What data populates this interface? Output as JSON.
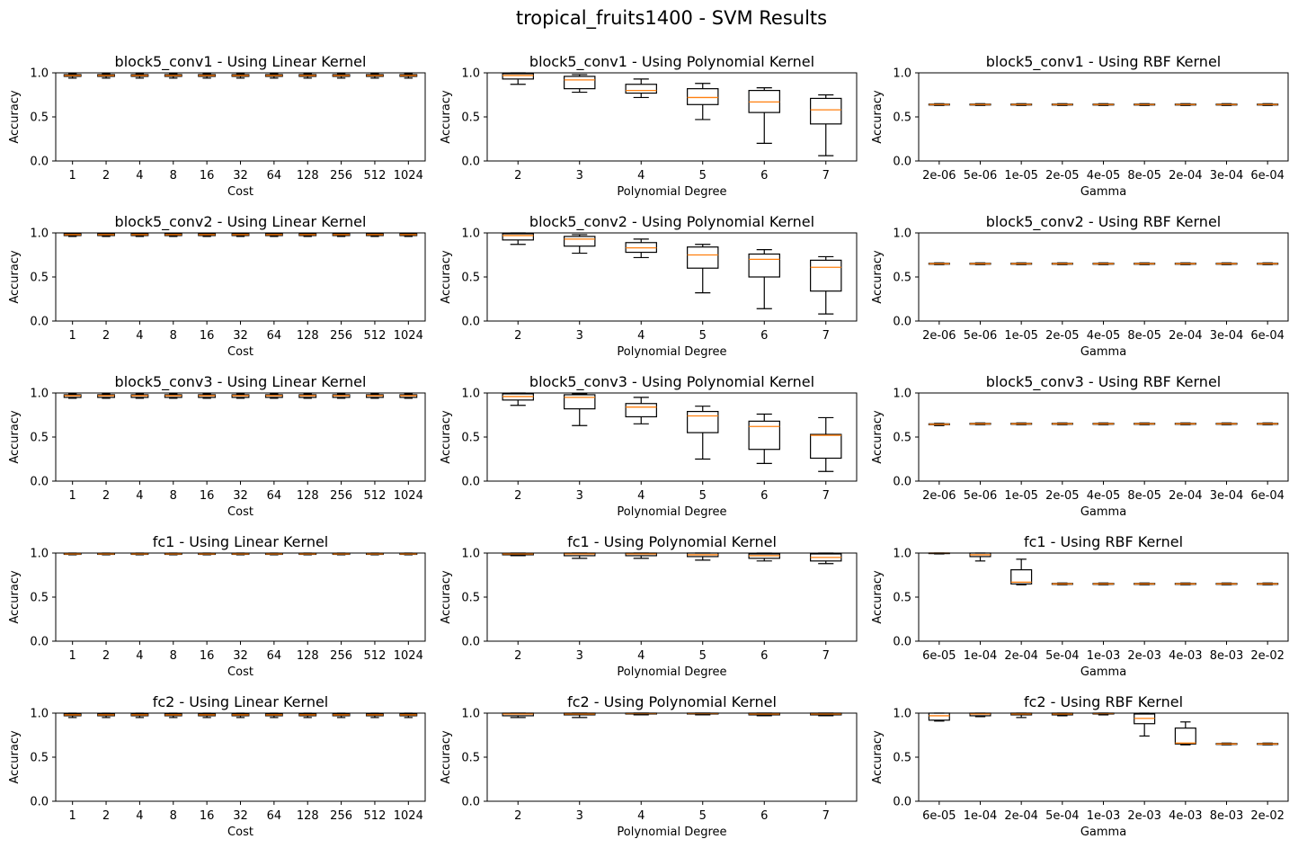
{
  "suptitle": "tropical_fruits1400 - SVM Results",
  "colors": {
    "box": "#000000",
    "median": "#ff7f0e",
    "background": "#ffffff"
  },
  "chart_data": [
    {
      "type": "box",
      "title": "block5_conv1 - Using Linear Kernel",
      "xlabel": "Cost",
      "ylabel": "Accuracy",
      "ylim": [
        0,
        1
      ],
      "yticks": [
        "0.0",
        "0.5",
        "1.0"
      ],
      "categories": [
        "1",
        "2",
        "4",
        "8",
        "16",
        "32",
        "64",
        "128",
        "256",
        "512",
        "1024"
      ],
      "boxes": [
        [
          0.94,
          0.96,
          0.97,
          0.98,
          0.99
        ],
        [
          0.94,
          0.96,
          0.97,
          0.98,
          0.99
        ],
        [
          0.94,
          0.96,
          0.97,
          0.98,
          0.99
        ],
        [
          0.94,
          0.96,
          0.97,
          0.98,
          0.99
        ],
        [
          0.94,
          0.96,
          0.97,
          0.98,
          0.99
        ],
        [
          0.94,
          0.96,
          0.97,
          0.98,
          0.99
        ],
        [
          0.94,
          0.96,
          0.97,
          0.98,
          0.99
        ],
        [
          0.94,
          0.96,
          0.97,
          0.98,
          0.99
        ],
        [
          0.94,
          0.96,
          0.97,
          0.98,
          0.99
        ],
        [
          0.94,
          0.96,
          0.97,
          0.98,
          0.99
        ],
        [
          0.94,
          0.96,
          0.97,
          0.98,
          0.99
        ]
      ]
    },
    {
      "type": "box",
      "title": "block5_conv1 - Using Polynomial Kernel",
      "xlabel": "Polynomial Degree",
      "ylabel": "Accuracy",
      "ylim": [
        0,
        1
      ],
      "yticks": [
        "0.0",
        "0.5",
        "1.0"
      ],
      "categories": [
        "2",
        "3",
        "4",
        "5",
        "6",
        "7"
      ],
      "boxes": [
        [
          0.87,
          0.93,
          0.97,
          0.99,
          1.0
        ],
        [
          0.78,
          0.82,
          0.92,
          0.96,
          0.98
        ],
        [
          0.72,
          0.77,
          0.8,
          0.87,
          0.93
        ],
        [
          0.47,
          0.64,
          0.72,
          0.82,
          0.88
        ],
        [
          0.2,
          0.55,
          0.67,
          0.8,
          0.83
        ],
        [
          0.06,
          0.42,
          0.58,
          0.71,
          0.75
        ]
      ]
    },
    {
      "type": "box",
      "title": "block5_conv1 - Using RBF Kernel",
      "xlabel": "Gamma",
      "ylabel": "Accuracy",
      "ylim": [
        0,
        1
      ],
      "yticks": [
        "0.0",
        "0.5",
        "1.0"
      ],
      "categories": [
        "2e-06",
        "5e-06",
        "1e-05",
        "2e-05",
        "4e-05",
        "8e-05",
        "2e-04",
        "3e-04",
        "6e-04"
      ],
      "boxes": [
        [
          0.63,
          0.635,
          0.64,
          0.645,
          0.65
        ],
        [
          0.63,
          0.635,
          0.64,
          0.645,
          0.65
        ],
        [
          0.63,
          0.635,
          0.64,
          0.645,
          0.65
        ],
        [
          0.63,
          0.635,
          0.64,
          0.645,
          0.65
        ],
        [
          0.63,
          0.635,
          0.64,
          0.645,
          0.65
        ],
        [
          0.63,
          0.635,
          0.64,
          0.645,
          0.65
        ],
        [
          0.63,
          0.635,
          0.64,
          0.645,
          0.65
        ],
        [
          0.63,
          0.635,
          0.64,
          0.645,
          0.65
        ],
        [
          0.63,
          0.635,
          0.64,
          0.645,
          0.65
        ]
      ]
    },
    {
      "type": "box",
      "title": "block5_conv2 - Using Linear Kernel",
      "xlabel": "Cost",
      "ylabel": "Accuracy",
      "ylim": [
        0,
        1
      ],
      "yticks": [
        "0.0",
        "0.5",
        "1.0"
      ],
      "categories": [
        "1",
        "2",
        "4",
        "8",
        "16",
        "32",
        "64",
        "128",
        "256",
        "512",
        "1024"
      ],
      "boxes": [
        [
          0.96,
          0.97,
          0.98,
          0.99,
          0.995
        ],
        [
          0.96,
          0.97,
          0.98,
          0.99,
          0.995
        ],
        [
          0.96,
          0.97,
          0.98,
          0.99,
          0.995
        ],
        [
          0.96,
          0.97,
          0.98,
          0.99,
          0.995
        ],
        [
          0.96,
          0.97,
          0.98,
          0.99,
          0.995
        ],
        [
          0.96,
          0.97,
          0.98,
          0.99,
          0.995
        ],
        [
          0.96,
          0.97,
          0.98,
          0.99,
          0.995
        ],
        [
          0.96,
          0.97,
          0.98,
          0.99,
          0.995
        ],
        [
          0.96,
          0.97,
          0.98,
          0.99,
          0.995
        ],
        [
          0.96,
          0.97,
          0.98,
          0.99,
          0.995
        ],
        [
          0.96,
          0.97,
          0.98,
          0.99,
          0.995
        ]
      ]
    },
    {
      "type": "box",
      "title": "block5_conv2 - Using Polynomial Kernel",
      "xlabel": "Polynomial Degree",
      "ylabel": "Accuracy",
      "ylim": [
        0,
        1
      ],
      "yticks": [
        "0.0",
        "0.5",
        "1.0"
      ],
      "categories": [
        "2",
        "3",
        "4",
        "5",
        "6",
        "7"
      ],
      "boxes": [
        [
          0.87,
          0.92,
          0.97,
          0.99,
          1.0
        ],
        [
          0.77,
          0.85,
          0.93,
          0.96,
          0.98
        ],
        [
          0.72,
          0.78,
          0.83,
          0.89,
          0.93
        ],
        [
          0.32,
          0.6,
          0.75,
          0.84,
          0.87
        ],
        [
          0.14,
          0.5,
          0.7,
          0.76,
          0.81
        ],
        [
          0.08,
          0.34,
          0.61,
          0.69,
          0.73
        ]
      ]
    },
    {
      "type": "box",
      "title": "block5_conv2 - Using RBF Kernel",
      "xlabel": "Gamma",
      "ylabel": "Accuracy",
      "ylim": [
        0,
        1
      ],
      "yticks": [
        "0.0",
        "0.5",
        "1.0"
      ],
      "categories": [
        "2e-06",
        "5e-06",
        "1e-05",
        "2e-05",
        "4e-05",
        "8e-05",
        "2e-04",
        "3e-04",
        "6e-04"
      ],
      "boxes": [
        [
          0.64,
          0.645,
          0.65,
          0.655,
          0.66
        ],
        [
          0.64,
          0.645,
          0.65,
          0.655,
          0.66
        ],
        [
          0.64,
          0.645,
          0.65,
          0.655,
          0.66
        ],
        [
          0.64,
          0.645,
          0.65,
          0.655,
          0.66
        ],
        [
          0.64,
          0.645,
          0.65,
          0.655,
          0.66
        ],
        [
          0.64,
          0.645,
          0.65,
          0.655,
          0.66
        ],
        [
          0.64,
          0.645,
          0.65,
          0.655,
          0.66
        ],
        [
          0.64,
          0.645,
          0.65,
          0.655,
          0.66
        ],
        [
          0.64,
          0.645,
          0.65,
          0.655,
          0.66
        ]
      ]
    },
    {
      "type": "box",
      "title": "block5_conv3 - Using Linear Kernel",
      "xlabel": "Cost",
      "ylabel": "Accuracy",
      "ylim": [
        0,
        1
      ],
      "yticks": [
        "0.0",
        "0.5",
        "1.0"
      ],
      "categories": [
        "1",
        "2",
        "4",
        "8",
        "16",
        "32",
        "64",
        "128",
        "256",
        "512",
        "1024"
      ],
      "boxes": [
        [
          0.94,
          0.95,
          0.97,
          0.98,
          0.99
        ],
        [
          0.94,
          0.95,
          0.97,
          0.98,
          0.99
        ],
        [
          0.94,
          0.95,
          0.97,
          0.98,
          0.99
        ],
        [
          0.94,
          0.95,
          0.97,
          0.98,
          0.99
        ],
        [
          0.94,
          0.95,
          0.97,
          0.98,
          0.99
        ],
        [
          0.94,
          0.95,
          0.97,
          0.98,
          0.99
        ],
        [
          0.94,
          0.95,
          0.97,
          0.98,
          0.99
        ],
        [
          0.94,
          0.95,
          0.97,
          0.98,
          0.99
        ],
        [
          0.94,
          0.95,
          0.97,
          0.98,
          0.99
        ],
        [
          0.94,
          0.95,
          0.97,
          0.98,
          0.99
        ],
        [
          0.94,
          0.95,
          0.97,
          0.98,
          0.99
        ]
      ]
    },
    {
      "type": "box",
      "title": "block5_conv3 - Using Polynomial Kernel",
      "xlabel": "Polynomial Degree",
      "ylabel": "Accuracy",
      "ylim": [
        0,
        1
      ],
      "yticks": [
        "0.0",
        "0.5",
        "1.0"
      ],
      "categories": [
        "2",
        "3",
        "4",
        "5",
        "6",
        "7"
      ],
      "boxes": [
        [
          0.86,
          0.92,
          0.96,
          0.99,
          1.0
        ],
        [
          0.63,
          0.82,
          0.95,
          0.98,
          0.99
        ],
        [
          0.65,
          0.73,
          0.84,
          0.88,
          0.95
        ],
        [
          0.25,
          0.55,
          0.74,
          0.79,
          0.85
        ],
        [
          0.2,
          0.36,
          0.62,
          0.68,
          0.76
        ],
        [
          0.11,
          0.26,
          0.52,
          0.53,
          0.72
        ]
      ]
    },
    {
      "type": "box",
      "title": "block5_conv3 - Using RBF Kernel",
      "xlabel": "Gamma",
      "ylabel": "Accuracy",
      "ylim": [
        0,
        1
      ],
      "yticks": [
        "0.0",
        "0.5",
        "1.0"
      ],
      "categories": [
        "2e-06",
        "5e-06",
        "1e-05",
        "2e-05",
        "4e-05",
        "8e-05",
        "2e-04",
        "3e-04",
        "6e-04"
      ],
      "boxes": [
        [
          0.63,
          0.64,
          0.645,
          0.65,
          0.655
        ],
        [
          0.64,
          0.645,
          0.65,
          0.655,
          0.66
        ],
        [
          0.64,
          0.645,
          0.65,
          0.655,
          0.66
        ],
        [
          0.64,
          0.645,
          0.65,
          0.655,
          0.66
        ],
        [
          0.64,
          0.645,
          0.65,
          0.655,
          0.66
        ],
        [
          0.64,
          0.645,
          0.65,
          0.655,
          0.66
        ],
        [
          0.64,
          0.645,
          0.65,
          0.655,
          0.66
        ],
        [
          0.64,
          0.645,
          0.65,
          0.655,
          0.66
        ],
        [
          0.64,
          0.645,
          0.65,
          0.655,
          0.66
        ]
      ]
    },
    {
      "type": "box",
      "title": "fc1 - Using Linear Kernel",
      "xlabel": "Cost",
      "ylabel": "Accuracy",
      "ylim": [
        0,
        1
      ],
      "yticks": [
        "0.0",
        "0.5",
        "1.0"
      ],
      "categories": [
        "1",
        "2",
        "4",
        "8",
        "16",
        "32",
        "64",
        "128",
        "256",
        "512",
        "1024"
      ],
      "boxes": [
        [
          0.98,
          0.985,
          0.99,
          0.995,
          1.0
        ],
        [
          0.98,
          0.985,
          0.99,
          0.995,
          1.0
        ],
        [
          0.98,
          0.985,
          0.99,
          0.995,
          1.0
        ],
        [
          0.98,
          0.985,
          0.99,
          0.995,
          1.0
        ],
        [
          0.98,
          0.985,
          0.99,
          0.995,
          1.0
        ],
        [
          0.98,
          0.985,
          0.99,
          0.995,
          1.0
        ],
        [
          0.98,
          0.985,
          0.99,
          0.995,
          1.0
        ],
        [
          0.98,
          0.985,
          0.99,
          0.995,
          1.0
        ],
        [
          0.98,
          0.985,
          0.99,
          0.995,
          1.0
        ],
        [
          0.98,
          0.985,
          0.99,
          0.995,
          1.0
        ],
        [
          0.98,
          0.985,
          0.99,
          0.995,
          1.0
        ]
      ]
    },
    {
      "type": "box",
      "title": "fc1 - Using Polynomial Kernel",
      "xlabel": "Polynomial Degree",
      "ylabel": "Accuracy",
      "ylim": [
        0,
        1
      ],
      "yticks": [
        "0.0",
        "0.5",
        "1.0"
      ],
      "categories": [
        "2",
        "3",
        "4",
        "5",
        "6",
        "7"
      ],
      "boxes": [
        [
          0.97,
          0.98,
          0.99,
          0.995,
          1.0
        ],
        [
          0.94,
          0.97,
          0.99,
          1.0,
          1.0
        ],
        [
          0.94,
          0.97,
          0.99,
          1.0,
          1.0
        ],
        [
          0.92,
          0.96,
          0.98,
          1.0,
          1.0
        ],
        [
          0.91,
          0.94,
          0.97,
          0.99,
          1.0
        ],
        [
          0.88,
          0.91,
          0.95,
          0.99,
          1.0
        ]
      ]
    },
    {
      "type": "box",
      "title": "fc1 - Using RBF Kernel",
      "xlabel": "Gamma",
      "ylabel": "Accuracy",
      "ylim": [
        0,
        1
      ],
      "yticks": [
        "0.0",
        "0.5",
        "1.0"
      ],
      "categories": [
        "6e-05",
        "1e-04",
        "2e-04",
        "5e-04",
        "1e-03",
        "2e-03",
        "4e-03",
        "8e-03",
        "2e-02"
      ],
      "boxes": [
        [
          0.99,
          0.995,
          1.0,
          1.0,
          1.0
        ],
        [
          0.91,
          0.96,
          0.98,
          1.0,
          1.0
        ],
        [
          0.64,
          0.65,
          0.67,
          0.81,
          0.93
        ],
        [
          0.64,
          0.645,
          0.65,
          0.655,
          0.66
        ],
        [
          0.64,
          0.645,
          0.65,
          0.655,
          0.66
        ],
        [
          0.64,
          0.645,
          0.65,
          0.655,
          0.66
        ],
        [
          0.64,
          0.645,
          0.65,
          0.655,
          0.66
        ],
        [
          0.64,
          0.645,
          0.65,
          0.655,
          0.66
        ],
        [
          0.64,
          0.645,
          0.65,
          0.655,
          0.66
        ]
      ]
    },
    {
      "type": "box",
      "title": "fc2 - Using Linear Kernel",
      "xlabel": "Cost",
      "ylabel": "Accuracy",
      "ylim": [
        0,
        1
      ],
      "yticks": [
        "0.0",
        "0.5",
        "1.0"
      ],
      "categories": [
        "1",
        "2",
        "4",
        "8",
        "16",
        "32",
        "64",
        "128",
        "256",
        "512",
        "1024"
      ],
      "boxes": [
        [
          0.95,
          0.97,
          0.98,
          0.99,
          1.0
        ],
        [
          0.95,
          0.97,
          0.98,
          0.99,
          1.0
        ],
        [
          0.95,
          0.97,
          0.98,
          0.99,
          1.0
        ],
        [
          0.95,
          0.97,
          0.98,
          0.99,
          1.0
        ],
        [
          0.95,
          0.97,
          0.98,
          0.99,
          1.0
        ],
        [
          0.95,
          0.97,
          0.98,
          0.99,
          1.0
        ],
        [
          0.95,
          0.97,
          0.98,
          0.99,
          1.0
        ],
        [
          0.95,
          0.97,
          0.98,
          0.99,
          1.0
        ],
        [
          0.95,
          0.97,
          0.98,
          0.99,
          1.0
        ],
        [
          0.95,
          0.97,
          0.98,
          0.99,
          1.0
        ],
        [
          0.95,
          0.97,
          0.98,
          0.99,
          1.0
        ]
      ]
    },
    {
      "type": "box",
      "title": "fc2 - Using Polynomial Kernel",
      "xlabel": "Polynomial Degree",
      "ylabel": "Accuracy",
      "ylim": [
        0,
        1
      ],
      "yticks": [
        "0.0",
        "0.5",
        "1.0"
      ],
      "categories": [
        "2",
        "3",
        "4",
        "5",
        "6",
        "7"
      ],
      "boxes": [
        [
          0.95,
          0.97,
          0.99,
          1.0,
          1.0
        ],
        [
          0.95,
          0.98,
          0.99,
          1.0,
          1.0
        ],
        [
          0.98,
          0.99,
          0.995,
          1.0,
          1.0
        ],
        [
          0.98,
          0.99,
          0.995,
          1.0,
          1.0
        ],
        [
          0.97,
          0.98,
          0.99,
          1.0,
          1.0
        ],
        [
          0.97,
          0.98,
          0.99,
          1.0,
          1.0
        ]
      ]
    },
    {
      "type": "box",
      "title": "fc2 - Using RBF Kernel",
      "xlabel": "Gamma",
      "ylabel": "Accuracy",
      "ylim": [
        0,
        1
      ],
      "yticks": [
        "0.0",
        "0.5",
        "1.0"
      ],
      "categories": [
        "6e-05",
        "1e-04",
        "2e-04",
        "5e-04",
        "1e-03",
        "2e-03",
        "4e-03",
        "8e-03",
        "2e-02"
      ],
      "boxes": [
        [
          0.91,
          0.92,
          0.97,
          1.0,
          1.0
        ],
        [
          0.96,
          0.97,
          0.99,
          1.0,
          1.0
        ],
        [
          0.95,
          0.98,
          0.99,
          1.0,
          1.0
        ],
        [
          0.97,
          0.98,
          0.99,
          1.0,
          1.0
        ],
        [
          0.98,
          0.99,
          0.995,
          1.0,
          1.0
        ],
        [
          0.74,
          0.88,
          0.94,
          0.99,
          1.0
        ],
        [
          0.64,
          0.65,
          0.66,
          0.83,
          0.9
        ],
        [
          0.64,
          0.645,
          0.65,
          0.655,
          0.66
        ],
        [
          0.64,
          0.645,
          0.65,
          0.655,
          0.66
        ]
      ]
    }
  ]
}
